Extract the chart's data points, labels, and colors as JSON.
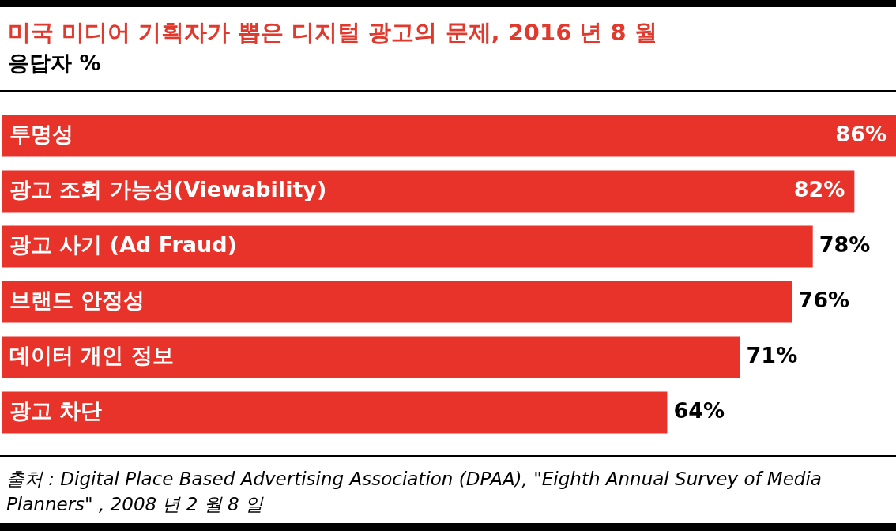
{
  "chart_data": {
    "type": "bar",
    "orientation": "horizontal",
    "title": "미국 미디어 기획자가 뽑은 디지털 광고의 문제, 2016 년 8 월",
    "subtitle": "응답자 %",
    "categories": [
      "투명성",
      "광고 조회 가능성(Viewability)",
      "광고 사기 (Ad Fraud)",
      "브랜드 안정성",
      "데이터 개인 정보",
      "광고 차단"
    ],
    "values": [
      86,
      82,
      78,
      76,
      71,
      64
    ],
    "value_labels": [
      "86%",
      "82%",
      "78%",
      "76%",
      "71%",
      "64%"
    ],
    "color": "#e8332a",
    "legend": false,
    "annotations": [
      "출처 : Digital Place Based Advertising Association (DPAA), \"Eighth Annual Survey of Media Planners\" , 2008 년 2 월 8 일"
    ]
  }
}
